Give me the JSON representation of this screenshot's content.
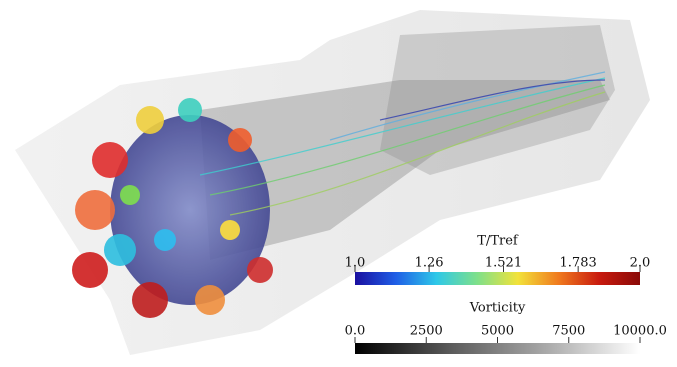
{
  "colorbars": [
    {
      "title": "T/Tref",
      "range": [
        1,
        2
      ],
      "ticks": [
        {
          "value": 1,
          "label": "1.0"
        },
        1.26,
        1.521,
        1.783,
        {
          "value": 2,
          "label": "2.0"
        }
      ],
      "colors": [
        "#1a0fa0",
        "#1f5ee6",
        "#2ec8e8",
        "#7ee08a",
        "#f2e23a",
        "#f07a1e",
        "#c81a0e",
        "#8a0a08"
      ]
    },
    {
      "title": "Vorticity",
      "range": [
        0,
        10000
      ],
      "ticks": [
        {
          "value": 0,
          "label": "0.0"
        },
        2500,
        5000,
        7500,
        {
          "value": 10000,
          "label": "10000.0"
        }
      ],
      "colors": [
        "#000000",
        "#5a5a5a",
        "#a8a8a8",
        "#ffffff"
      ]
    }
  ]
}
